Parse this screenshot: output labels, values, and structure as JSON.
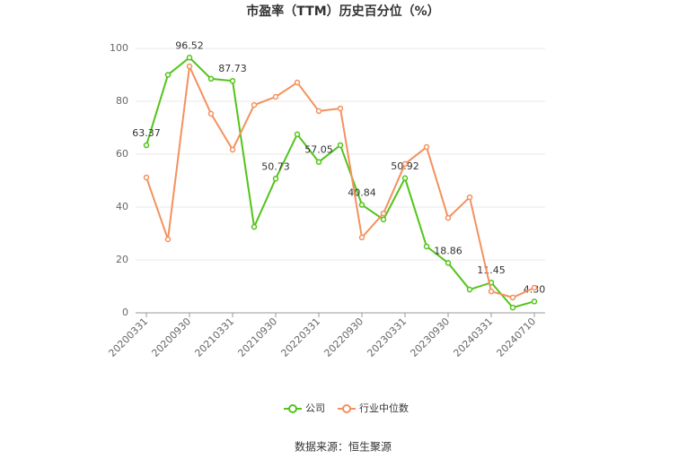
{
  "chart_data": {
    "type": "line",
    "title": "市盈率（TTM）历史百分位（%）",
    "source": "数据来源：恒生聚源",
    "categories": [
      "20200331",
      null,
      "20200930",
      null,
      "20210331",
      null,
      "20210930",
      null,
      "20220331",
      null,
      "20220930",
      null,
      "20230331",
      null,
      "20230930",
      null,
      "20240331",
      null,
      "20240710"
    ],
    "series": [
      {
        "name": "公司",
        "color": "#52c41a",
        "values": [
          63.37,
          90,
          96.52,
          88.5,
          87.73,
          32.5,
          50.73,
          67.5,
          57.05,
          63.4,
          40.84,
          35.3,
          50.92,
          25.1,
          18.86,
          8.8,
          11.45,
          2,
          4.3
        ],
        "value_labels": [
          "63.37",
          null,
          "96.52",
          null,
          "87.73",
          null,
          "50.73",
          null,
          "57.05",
          null,
          "40.84",
          null,
          "50.92",
          null,
          "18.86",
          null,
          "11.45",
          null,
          "4.30"
        ]
      },
      {
        "name": "行业中位数",
        "color": "#f4915e",
        "values": [
          51.2,
          27.8,
          93.2,
          75.3,
          61.7,
          78.6,
          81.7,
          87.1,
          76.3,
          77.3,
          28.5,
          37.6,
          56.3,
          62.7,
          35.9,
          43.7,
          8.1,
          5.8,
          9.5
        ]
      }
    ],
    "ylim": [
      0,
      100
    ],
    "yticks": [
      0,
      20,
      40,
      60,
      80,
      100
    ],
    "grid": true,
    "legend": "bottom"
  }
}
